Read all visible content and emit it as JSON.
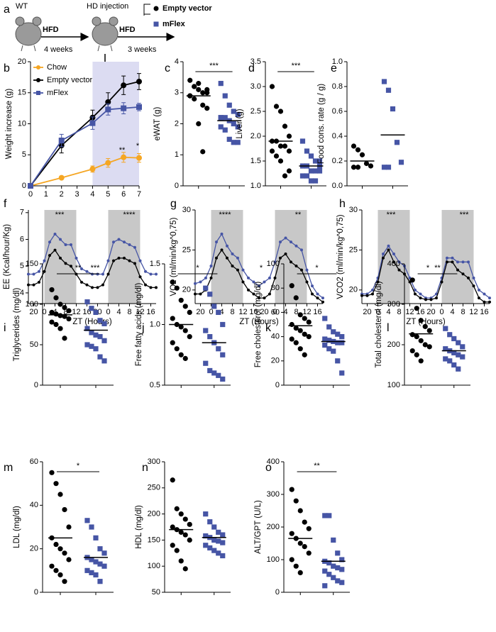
{
  "schematic": {
    "label": "a",
    "wt": "WT",
    "diet1": "HFD",
    "period1": "4 weeks",
    "injection": "HD injection",
    "diet2": "HFD",
    "period2": "3 weeks",
    "groups": [
      {
        "name": "Empty vector",
        "color": "#000000"
      },
      {
        "name": "mFlex",
        "color": "#4655a5"
      }
    ]
  },
  "chart_data": [
    {
      "type": "line",
      "label": "b",
      "ylabel": "Weight increase (g)",
      "x": [
        0,
        2,
        4,
        5,
        6,
        7
      ],
      "xlim": [
        0,
        7
      ],
      "xticks": [
        0,
        1,
        2,
        3,
        4,
        5,
        6,
        7
      ],
      "ylim": [
        0,
        20
      ],
      "yticks": [
        0,
        5,
        10,
        15,
        20
      ],
      "shaded": [
        [
          4,
          7
        ]
      ],
      "shade_color": "#dcdcf2",
      "legend": "upper left",
      "series": [
        {
          "name": "Chow",
          "color": "#f5a623",
          "marker": "circle",
          "values": [
            0,
            1.3,
            2.7,
            3.7,
            4.6,
            4.5
          ],
          "errors": [
            0,
            0.1,
            0.5,
            0.7,
            0.8,
            0.7
          ]
        },
        {
          "name": "Empty vector",
          "color": "#000000",
          "marker": "circle",
          "values": [
            0,
            6.5,
            11,
            13.5,
            16.2,
            16.8
          ],
          "errors": [
            0,
            1.2,
            1.2,
            1.5,
            1.5,
            1.3
          ]
        },
        {
          "name": "mFlex",
          "color": "#4655a5",
          "marker": "square",
          "values": [
            0,
            7.3,
            10.1,
            12.3,
            12.5,
            12.7
          ],
          "errors": [
            0,
            1,
            1,
            0.9,
            0.9,
            0.6
          ]
        }
      ],
      "annotations": [
        "**",
        "*"
      ]
    },
    {
      "type": "dot",
      "label": "c",
      "ylabel": "eWAT (g)",
      "ylim": [
        0,
        4
      ],
      "yticks": [
        0,
        1,
        2,
        3,
        4
      ],
      "significance": "***",
      "series": [
        {
          "color": "#000000",
          "marker": "circle",
          "values": [
            3.4,
            3.2,
            3.1,
            3.0,
            3.1,
            2.9,
            2.8,
            3.3,
            2.6,
            2.5,
            2.9,
            3.2,
            2.0,
            1.1,
            3.0
          ],
          "mean": 2.9
        },
        {
          "color": "#4655a5",
          "marker": "square",
          "values": [
            3.3,
            2.9,
            2.6,
            2.4,
            2.3,
            2.2,
            2.2,
            2.1,
            2.0,
            1.9,
            1.9,
            1.8,
            1.5,
            1.4,
            1.4,
            2.2
          ],
          "mean": 2.1
        }
      ]
    },
    {
      "type": "dot",
      "label": "d",
      "ylabel": "Liver (g)",
      "ylim": [
        1,
        3.5
      ],
      "yticks": [
        {
          "value": 1,
          "label": "1.0"
        },
        1.5,
        {
          "value": 2,
          "label": "2.0"
        },
        2.5,
        {
          "value": 3,
          "label": "3.0"
        },
        3.5
      ],
      "significance": "***",
      "series": [
        {
          "color": "#000000",
          "marker": "circle",
          "values": [
            3.0,
            2.6,
            2.5,
            2.2,
            2.0,
            1.9,
            1.9,
            1.8,
            1.8,
            1.7,
            1.7,
            1.6,
            1.5,
            1.2,
            1.3
          ],
          "mean": 1.9
        },
        {
          "color": "#4655a5",
          "marker": "square",
          "values": [
            1.9,
            1.7,
            1.6,
            1.5,
            1.4,
            1.4,
            1.4,
            1.3,
            1.3,
            1.3,
            1.2,
            1.2,
            1.1,
            1.1,
            1.5
          ],
          "mean": 1.4
        }
      ]
    },
    {
      "type": "dot",
      "label": "e",
      "ylabel": "Food cons. rate (g / g)",
      "ylim": [
        0,
        1
      ],
      "yticks": [
        {
          "value": 0,
          "label": "0.0"
        },
        0.2,
        0.4,
        0.6,
        0.8,
        {
          "value": 1,
          "label": "1.0"
        }
      ],
      "series": [
        {
          "color": "#000000",
          "marker": "circle",
          "values": [
            0.32,
            0.29,
            0.25,
            0.18,
            0.16,
            0.15,
            0.15
          ],
          "mean": 0.2
        },
        {
          "color": "#4655a5",
          "marker": "square",
          "values": [
            0.84,
            0.77,
            0.62,
            0.35,
            0.19,
            0.15,
            0.15
          ],
          "mean": 0.41
        }
      ]
    },
    {
      "type": "line",
      "label": "f",
      "ylabel": "EE (Kcal/hour/Kg)",
      "xlabel": "ZT (Hours)",
      "x": [
        -6,
        -4,
        -2,
        0,
        2,
        4,
        6,
        8,
        10,
        12,
        14,
        16,
        18,
        20,
        22,
        24,
        26,
        28,
        30,
        32,
        34,
        36,
        38,
        40,
        42
      ],
      "xlim": [
        -6,
        42
      ],
      "xticks": [
        {
          "value": -4,
          "label": "20"
        },
        0,
        4,
        8,
        12,
        16,
        20,
        {
          "value": 24,
          "label": "0"
        },
        {
          "value": 28,
          "label": "4"
        },
        {
          "value": 32,
          "label": "8"
        },
        {
          "value": 36,
          "label": "12"
        },
        {
          "value": 40,
          "label": "16"
        }
      ],
      "ylim": [
        3.6,
        7.1
      ],
      "yticks": [
        4,
        5,
        6,
        7
      ],
      "shaded": [
        [
          0,
          12
        ],
        [
          24,
          36
        ]
      ],
      "shade_color": "#c8c8c8",
      "series": [
        {
          "color": "#4655a5",
          "marker": "circle",
          "values": [
            4.7,
            4.7,
            4.8,
            5.2,
            5.9,
            6.2,
            6.0,
            5.8,
            5.8,
            5.3,
            4.9,
            4.8,
            4.7,
            4.7,
            4.7,
            5.2,
            5.9,
            6.0,
            5.9,
            5.8,
            5.7,
            5.2,
            4.8,
            4.7,
            4.7
          ]
        },
        {
          "color": "#000000",
          "marker": "circle",
          "values": [
            4.3,
            4.3,
            4.4,
            4.8,
            5.4,
            5.6,
            5.3,
            5.1,
            5.0,
            4.7,
            4.4,
            4.3,
            4.2,
            4.2,
            4.3,
            4.7,
            5.2,
            5.3,
            5.3,
            5.2,
            5.1,
            4.6,
            4.3,
            4.2,
            4.2
          ]
        }
      ],
      "annotations": [
        "***",
        "***",
        "****"
      ]
    },
    {
      "type": "line",
      "label": "g",
      "ylabel": "VO2 (ml/min/kg^0,75)",
      "xlabel": "ZT (Hours)",
      "x": [
        -6,
        -4,
        -2,
        0,
        2,
        4,
        6,
        8,
        10,
        12,
        14,
        16,
        18,
        20,
        22,
        24,
        26,
        28,
        30,
        32,
        34,
        36,
        38,
        40,
        42
      ],
      "xlim": [
        -6,
        42
      ],
      "xticks": [
        {
          "value": -4,
          "label": "20"
        },
        0,
        4,
        8,
        12,
        16,
        20,
        {
          "value": 24,
          "label": "0"
        },
        {
          "value": 28,
          "label": "4"
        },
        {
          "value": 32,
          "label": "8"
        },
        {
          "value": 36,
          "label": "12"
        },
        {
          "value": 40,
          "label": "16"
        }
      ],
      "ylim": [
        18.3,
        30
      ],
      "yticks": [
        20,
        25,
        30
      ],
      "shaded": [
        [
          0,
          12
        ],
        [
          24,
          36
        ]
      ],
      "shade_color": "#c8c8c8",
      "series": [
        {
          "color": "#4655a5",
          "marker": "circle",
          "values": [
            20.8,
            21,
            21.5,
            23,
            26,
            27,
            25.5,
            24.5,
            24,
            22.5,
            21.5,
            21,
            20.5,
            21,
            21.5,
            23.5,
            26,
            26.5,
            26,
            25.5,
            25,
            22.5,
            20.5,
            19.5,
            19
          ]
        },
        {
          "color": "#000000",
          "marker": "circle",
          "values": [
            19.5,
            19.5,
            20,
            21.5,
            24,
            25,
            24,
            23,
            22.5,
            21,
            20,
            19.5,
            19,
            19,
            19.5,
            21.5,
            24,
            24.5,
            23.5,
            23,
            22.5,
            21,
            19.5,
            19,
            18.5
          ]
        }
      ],
      "annotations": [
        "****",
        "*",
        "**"
      ]
    },
    {
      "type": "line",
      "label": "h",
      "ylabel": "VCO2 (ml/min/kg^0,75)",
      "xlabel": "ZT (Hours)",
      "x": [
        -6,
        -4,
        -2,
        0,
        2,
        4,
        6,
        8,
        10,
        12,
        14,
        16,
        18,
        20,
        22,
        24,
        26,
        28,
        30,
        32,
        34,
        36,
        38,
        40,
        42
      ],
      "xlim": [
        -6,
        42
      ],
      "xticks": [
        {
          "value": -4,
          "label": "20"
        },
        0,
        4,
        8,
        12,
        16,
        20,
        {
          "value": 24,
          "label": "0"
        },
        {
          "value": 28,
          "label": "4"
        },
        {
          "value": 32,
          "label": "8"
        },
        {
          "value": 36,
          "label": "12"
        },
        {
          "value": 40,
          "label": "16"
        }
      ],
      "ylim": [
        18.3,
        30
      ],
      "yticks": [
        20,
        25,
        30
      ],
      "shaded": [
        [
          0,
          12
        ],
        [
          24,
          36
        ]
      ],
      "shade_color": "#c8c8c8",
      "series": [
        {
          "color": "#4655a5",
          "marker": "circle",
          "values": [
            19.5,
            19.5,
            20,
            21.5,
            24.5,
            25.5,
            24.5,
            23.5,
            23,
            21.5,
            20,
            19.5,
            19,
            19,
            19.5,
            21.5,
            24,
            24,
            23.5,
            23.5,
            23.5,
            21.5,
            20,
            19.5,
            19
          ]
        },
        {
          "color": "#000000",
          "marker": "circle",
          "values": [
            19.3,
            19.3,
            19.5,
            21,
            24,
            25,
            23.5,
            22.5,
            22,
            21,
            19.5,
            19,
            18.8,
            18.8,
            19,
            21,
            23.5,
            23.5,
            22.5,
            22,
            21.5,
            20.5,
            19,
            18.5,
            18.5
          ]
        }
      ],
      "annotations": [
        "***",
        "*",
        "***"
      ]
    },
    {
      "type": "dot",
      "label": "i",
      "ylabel": "Triglycerides (mg/dl)",
      "ylim": [
        0,
        150
      ],
      "yticks": [
        0,
        50,
        100,
        150
      ],
      "significance": "**",
      "series": [
        {
          "color": "#000000",
          "marker": "circle",
          "values": [
            118,
            108,
            100,
            96,
            92,
            90,
            88,
            86,
            85,
            82,
            78,
            75,
            70,
            58
          ],
          "mean": 87
        },
        {
          "color": "#4655a5",
          "marker": "square",
          "values": [
            103,
            95,
            90,
            80,
            76,
            70,
            65,
            62,
            60,
            55,
            50,
            48,
            45,
            35,
            30
          ],
          "mean": 68
        }
      ]
    },
    {
      "type": "dot",
      "label": "j",
      "ylabel": "Free fatty acids (mg/dl)",
      "ylim": [
        0.5,
        1.5
      ],
      "yticks": [
        0.5,
        {
          "value": 1,
          "label": "1.0"
        },
        1.5
      ],
      "significance": "*",
      "series": [
        {
          "color": "#000000",
          "marker": "circle",
          "values": [
            1.35,
            1.3,
            1.2,
            1.15,
            1.1,
            1.05,
            1.0,
            0.98,
            0.95,
            0.9,
            0.85,
            0.8,
            0.75,
            0.72
          ],
          "mean": 1.0
        },
        {
          "color": "#4655a5",
          "marker": "square",
          "values": [
            1.3,
            1.25,
            1.15,
            1.1,
            1.0,
            0.95,
            0.9,
            0.85,
            0.8,
            0.75,
            0.68,
            0.62,
            0.6,
            0.58,
            0.55
          ],
          "mean": 0.85
        }
      ]
    },
    {
      "type": "dot",
      "label": "k",
      "ylabel": "Free cholesterol (mg/dl)",
      "ylim": [
        0,
        100
      ],
      "yticks": [
        0,
        20,
        40,
        60,
        80,
        100
      ],
      "significance": "*",
      "series": [
        {
          "color": "#000000",
          "marker": "circle",
          "values": [
            82,
            72,
            58,
            55,
            52,
            50,
            47,
            45,
            42,
            40,
            38,
            35,
            30,
            25
          ],
          "mean": 49
        },
        {
          "color": "#4655a5",
          "marker": "square",
          "values": [
            55,
            48,
            44,
            42,
            40,
            38,
            37,
            36,
            35,
            35,
            33,
            30,
            28,
            20,
            10
          ],
          "mean": 36
        }
      ]
    },
    {
      "type": "dot",
      "label": "l",
      "ylabel": "Total cholesterol (mg/dl)",
      "ylim": [
        100,
        400
      ],
      "yticks": [
        100,
        200,
        300,
        400
      ],
      "significance": "**",
      "series": [
        {
          "color": "#000000",
          "marker": "circle",
          "values": [
            360,
            290,
            260,
            245,
            235,
            225,
            220,
            210,
            200,
            195,
            185,
            175,
            160
          ],
          "mean": 227
        },
        {
          "color": "#4655a5",
          "marker": "square",
          "values": [
            240,
            225,
            215,
            205,
            195,
            190,
            185,
            180,
            175,
            170,
            165,
            160,
            150,
            140
          ],
          "mean": 185
        }
      ]
    },
    {
      "type": "dot",
      "label": "m",
      "ylabel": "LDL (mg/dl)",
      "ylim": [
        0,
        60
      ],
      "yticks": [
        0,
        20,
        40,
        60
      ],
      "significance": "*",
      "series": [
        {
          "color": "#000000",
          "marker": "circle",
          "values": [
            55,
            50,
            45,
            38,
            30,
            25,
            22,
            20,
            18,
            15,
            12,
            10,
            8,
            5
          ],
          "mean": 25
        },
        {
          "color": "#4655a5",
          "marker": "square",
          "values": [
            33,
            30,
            25,
            20,
            18,
            16,
            15,
            14,
            13,
            12,
            10,
            9,
            8,
            5
          ],
          "mean": 16
        }
      ]
    },
    {
      "type": "dot",
      "label": "n",
      "ylabel": "HDL (mg/dl)",
      "ylim": [
        50,
        300
      ],
      "yticks": [
        50,
        100,
        150,
        200,
        250,
        300
      ],
      "series": [
        {
          "color": "#000000",
          "marker": "circle",
          "values": [
            265,
            210,
            200,
            190,
            180,
            175,
            170,
            165,
            160,
            150,
            140,
            130,
            110,
            95
          ],
          "mean": 170
        },
        {
          "color": "#4655a5",
          "marker": "square",
          "values": [
            200,
            185,
            175,
            165,
            160,
            158,
            155,
            150,
            148,
            145,
            140,
            135,
            130,
            125,
            120
          ],
          "mean": 155
        }
      ]
    },
    {
      "type": "dot",
      "label": "o",
      "ylabel": "ALT/GPT (U/L)",
      "ylim": [
        0,
        400
      ],
      "yticks": [
        0,
        100,
        200,
        300,
        400
      ],
      "significance": "**",
      "series": [
        {
          "color": "#000000",
          "marker": "circle",
          "values": [
            315,
            280,
            250,
            215,
            195,
            180,
            165,
            150,
            140,
            120,
            100,
            80,
            60
          ],
          "mean": 165
        },
        {
          "color": "#4655a5",
          "marker": "square",
          "values": [
            235,
            235,
            160,
            120,
            100,
            95,
            90,
            80,
            75,
            70,
            65,
            55,
            45,
            35,
            30,
            20
          ],
          "mean": 95
        }
      ]
    }
  ]
}
